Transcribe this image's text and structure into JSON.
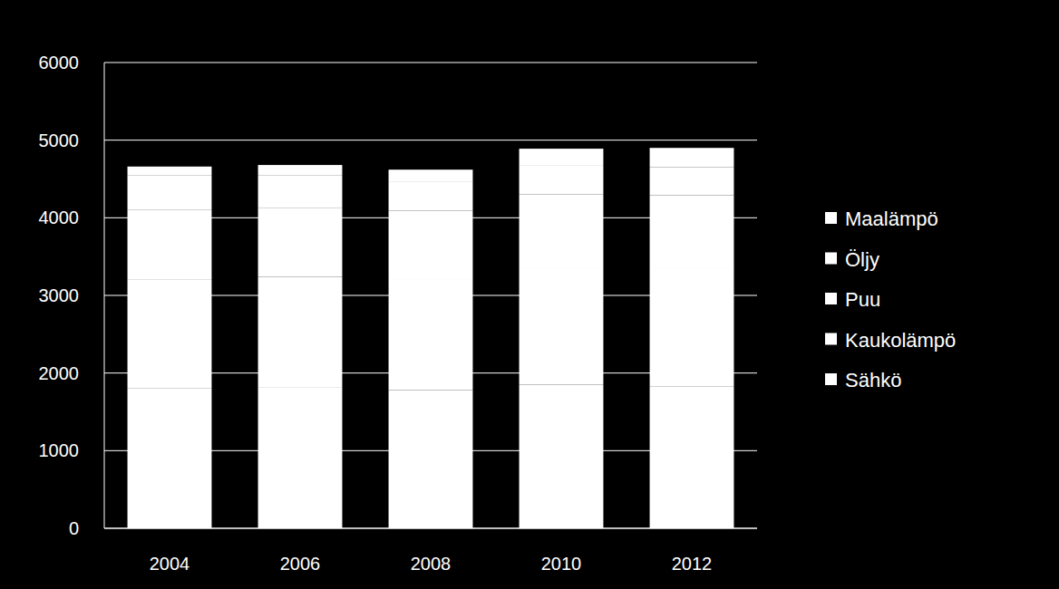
{
  "chart_data": {
    "type": "bar",
    "stacked": true,
    "grid": true,
    "legend": "right",
    "categories": [
      "2004",
      "2006",
      "2008",
      "2010",
      "2012"
    ],
    "series": [
      {
        "name": "Sähkö",
        "color": "#ffffff",
        "values": [
          1800,
          1820,
          1780,
          1850,
          1830
        ]
      },
      {
        "name": "Kaukolämpö",
        "color": "#ffffff",
        "values": [
          1400,
          1420,
          1430,
          1500,
          1520
        ]
      },
      {
        "name": "Puu",
        "color": "#ffffff",
        "values": [
          900,
          890,
          880,
          950,
          940
        ]
      },
      {
        "name": "Öljy",
        "color": "#ffffff",
        "values": [
          450,
          420,
          380,
          380,
          360
        ]
      },
      {
        "name": "Maalämpö",
        "color": "#ffffff",
        "values": [
          110,
          130,
          150,
          210,
          250
        ]
      }
    ],
    "ylim": [
      0,
      6000
    ],
    "yticks": [
      0,
      1000,
      2000,
      3000,
      4000,
      5000,
      6000
    ]
  }
}
